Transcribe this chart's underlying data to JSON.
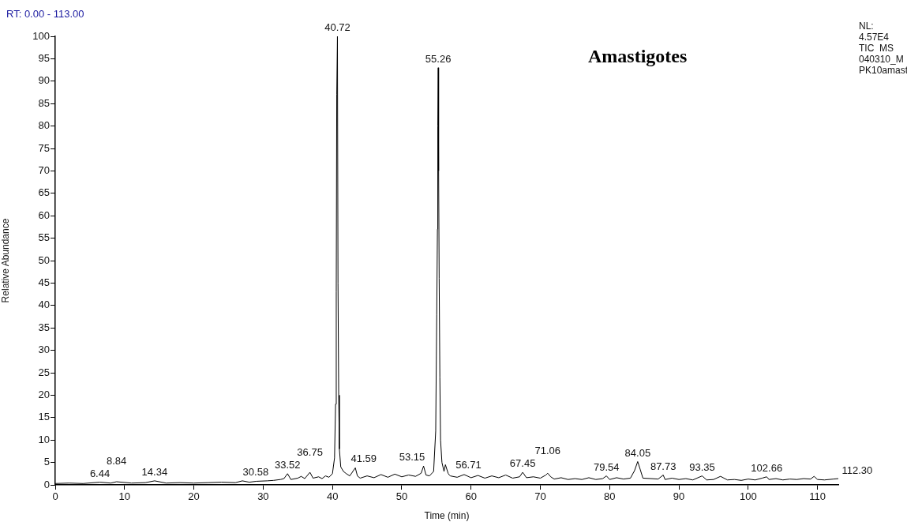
{
  "chart_data": {
    "type": "line",
    "title": "Amastigotes",
    "xlabel": "Time (min)",
    "ylabel": "Relative Abundance",
    "xlim": [
      0,
      113
    ],
    "xticks": [
      0,
      10,
      20,
      30,
      40,
      50,
      60,
      70,
      80,
      90,
      100,
      110
    ],
    "ylim": [
      0,
      100
    ],
    "yticks": [
      0,
      5,
      10,
      15,
      20,
      25,
      30,
      35,
      40,
      45,
      50,
      55,
      60,
      65,
      70,
      75,
      80,
      85,
      90,
      95,
      100
    ],
    "marker": "none",
    "x": [
      0,
      2,
      4,
      6.44,
      8,
      8.84,
      11,
      13,
      14.34,
      16,
      18,
      20,
      22,
      24,
      26,
      27,
      28,
      29,
      30.58,
      31.5,
      32.5,
      33,
      33.52,
      34,
      35,
      35.5,
      36,
      36.75,
      37.2,
      38,
      38.5,
      39,
      39.5,
      40,
      40.3,
      40.45,
      40.55,
      40.62,
      40.72,
      40.8,
      40.9,
      41.0,
      41.2,
      41.59,
      42,
      42.5,
      43.3,
      43.6,
      44,
      45,
      46,
      47,
      48,
      49,
      50,
      51,
      52,
      52.8,
      53.15,
      53.5,
      54,
      54.6,
      54.9,
      55.05,
      55.15,
      55.2,
      55.26,
      55.32,
      55.4,
      55.5,
      55.6,
      55.8,
      56.1,
      56.3,
      56.71,
      57,
      58,
      59,
      60,
      61,
      62,
      63,
      64,
      65,
      66,
      67,
      67.45,
      68,
      69,
      70,
      70.8,
      71.06,
      71.5,
      72,
      73,
      74,
      75,
      76,
      77,
      78,
      79,
      79.54,
      80,
      81,
      82,
      83,
      83.6,
      84.05,
      84.4,
      84.8,
      86,
      87,
      87.73,
      88,
      89,
      90,
      91,
      92,
      93.35,
      94,
      95,
      96,
      97,
      98,
      99,
      100,
      101,
      102,
      102.66,
      103,
      104,
      105,
      106,
      107,
      108,
      109,
      109.5,
      110,
      111,
      112.3,
      113
    ],
    "series": [
      {
        "color": "#000000",
        "values": [
          0.3,
          0.4,
          0.3,
          0.6,
          0.4,
          0.7,
          0.4,
          0.5,
          0.9,
          0.4,
          0.5,
          0.4,
          0.5,
          0.6,
          0.5,
          0.9,
          0.6,
          0.8,
          0.9,
          1.0,
          1.2,
          1.4,
          2.5,
          1.2,
          1.5,
          1.9,
          1.4,
          2.8,
          1.5,
          1.8,
          1.4,
          2.0,
          1.7,
          2.5,
          6,
          18,
          43,
          87,
          100,
          45,
          20,
          8,
          4,
          3,
          2.5,
          2,
          3.8,
          2,
          1.5,
          2.0,
          1.6,
          2.3,
          1.7,
          2.4,
          1.8,
          2.2,
          1.9,
          2.6,
          4.2,
          2.2,
          2.0,
          3,
          12,
          38,
          57,
          80,
          93,
          70,
          46,
          24,
          10,
          5,
          3,
          4.5,
          2.5,
          2.0,
          1.7,
          2.3,
          1.6,
          2.1,
          1.5,
          2.0,
          1.6,
          2.2,
          1.5,
          1.8,
          2.8,
          1.6,
          1.8,
          1.5,
          2.2,
          2.6,
          1.8,
          1.3,
          1.6,
          1.2,
          1.4,
          1.2,
          1.6,
          1.2,
          1.4,
          2.0,
          1.2,
          1.6,
          1.3,
          1.5,
          3.2,
          5.2,
          3.5,
          1.5,
          1.4,
          1.3,
          2.2,
          1.2,
          1.5,
          1.2,
          1.4,
          1.1,
          2.0,
          1.1,
          1.2,
          1.9,
          1.1,
          1.2,
          1.0,
          1.3,
          1.1,
          1.5,
          1.8,
          1.2,
          1.4,
          1.1,
          1.3,
          1.2,
          1.4,
          1.3,
          1.9,
          1.2,
          1.1,
          1.3,
          1.4
        ]
      }
    ],
    "annotations": [
      "RT: 0.00 - 113.00",
      "NL:",
      "4.57E4",
      "TIC  MS",
      "040310_M",
      "PK10amast",
      {
        "text": "6.44",
        "x": 6.44,
        "y": 0.6
      },
      {
        "text": "8.84",
        "x": 8.84,
        "y": 0.7
      },
      {
        "text": "14.34",
        "x": 14.34,
        "y": 0.9
      },
      {
        "text": "30.58",
        "x": 30.58,
        "y": 0.9
      },
      {
        "text": "33.52",
        "x": 33.52,
        "y": 2.5
      },
      {
        "text": "36.75",
        "x": 36.75,
        "y": 2.8
      },
      {
        "text": "40.72",
        "x": 40.72,
        "y": 100
      },
      {
        "text": "41.59",
        "x": 41.59,
        "y": 3
      },
      {
        "text": "53.15",
        "x": 53.15,
        "y": 4.2
      },
      {
        "text": "55.26",
        "x": 55.26,
        "y": 93
      },
      {
        "text": "56.71",
        "x": 56.71,
        "y": 2.5
      },
      {
        "text": "67.45",
        "x": 67.45,
        "y": 2.8
      },
      {
        "text": "71.06",
        "x": 71.06,
        "y": 2.6
      },
      {
        "text": "79.54",
        "x": 79.54,
        "y": 2.0
      },
      {
        "text": "84.05",
        "x": 84.05,
        "y": 5.2
      },
      {
        "text": "87.73",
        "x": 87.73,
        "y": 2.2
      },
      {
        "text": "93.35",
        "x": 93.35,
        "y": 2.0
      },
      {
        "text": "102.66",
        "x": 102.66,
        "y": 1.8
      },
      {
        "text": "112.30",
        "x": 112.3,
        "y": 1.3
      }
    ]
  }
}
